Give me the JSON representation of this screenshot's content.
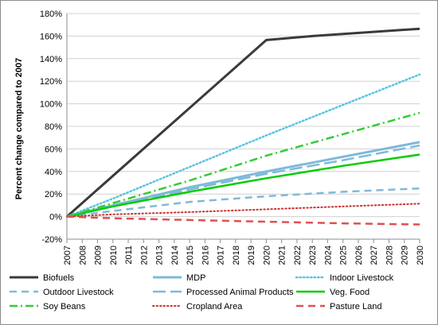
{
  "chart_data": {
    "type": "line",
    "title": "",
    "xlabel": "",
    "ylabel": "Percent change compared to 2007",
    "x": [
      2007,
      2008,
      2009,
      2010,
      2011,
      2012,
      2013,
      2014,
      2015,
      2016,
      2017,
      2018,
      2019,
      2020,
      2021,
      2022,
      2023,
      2024,
      2025,
      2026,
      2027,
      2028,
      2029,
      2030
    ],
    "x_tick_labels": [
      "2007",
      "2008",
      "2009",
      "2010",
      "2011",
      "2012",
      "2013",
      "2014",
      "2015",
      "2016",
      "2017",
      "2018",
      "2019",
      "2020",
      "2021",
      "2022",
      "2023",
      "2024",
      "2025",
      "2026",
      "2027",
      "2028",
      "2029",
      "2030"
    ],
    "ylim": [
      -20,
      180
    ],
    "y_ticks": [
      -20,
      0,
      20,
      40,
      60,
      80,
      100,
      120,
      140,
      160,
      180
    ],
    "y_tick_labels": [
      "-20%",
      "0%",
      "20%",
      "40%",
      "60%",
      "80%",
      "100%",
      "120%",
      "140%",
      "160%",
      "180%"
    ],
    "grid": "horizontal",
    "legend_position": "bottom",
    "series": [
      {
        "name": "Biofuels",
        "color": "#3a3a3a",
        "dash": "solid",
        "width": 3,
        "points": [
          [
            2007,
            0
          ],
          [
            2020,
            156.5
          ],
          [
            2023,
            160
          ],
          [
            2030,
            166.5
          ]
        ]
      },
      {
        "name": "MDP",
        "color": "#7fb9d9",
        "dash": "solid",
        "width": 3,
        "points": [
          [
            2007,
            0
          ],
          [
            2010,
            10
          ],
          [
            2015,
            26
          ],
          [
            2020,
            40
          ],
          [
            2025,
            53
          ],
          [
            2030,
            66
          ]
        ]
      },
      {
        "name": "Indoor Livestock",
        "color": "#5cc2e3",
        "dash": "dot",
        "width": 2.5,
        "points": [
          [
            2007,
            0
          ],
          [
            2010,
            16
          ],
          [
            2015,
            44
          ],
          [
            2020,
            72
          ],
          [
            2025,
            99
          ],
          [
            2030,
            126
          ]
        ]
      },
      {
        "name": "Outdoor Livestock",
        "color": "#7fb9d9",
        "dash": "dash",
        "width": 2.5,
        "points": [
          [
            2007,
            0
          ],
          [
            2010,
            5
          ],
          [
            2015,
            13
          ],
          [
            2020,
            18
          ],
          [
            2025,
            22
          ],
          [
            2030,
            25
          ]
        ]
      },
      {
        "name": "Processed Animal Products",
        "color": "#7fb9d9",
        "dash": "longdash",
        "width": 2.5,
        "points": [
          [
            2007,
            0
          ],
          [
            2010,
            9
          ],
          [
            2015,
            24
          ],
          [
            2020,
            38
          ],
          [
            2025,
            50
          ],
          [
            2030,
            63
          ]
        ]
      },
      {
        "name": "Veg. Food",
        "color": "#00cc00",
        "dash": "solid",
        "width": 2.5,
        "points": [
          [
            2007,
            0
          ],
          [
            2010,
            9
          ],
          [
            2015,
            22
          ],
          [
            2020,
            34
          ],
          [
            2025,
            45
          ],
          [
            2030,
            55
          ]
        ]
      },
      {
        "name": "Soy Beans",
        "color": "#33cc33",
        "dash": "dashdot",
        "width": 2.5,
        "points": [
          [
            2007,
            0
          ],
          [
            2010,
            12
          ],
          [
            2015,
            32
          ],
          [
            2020,
            54
          ],
          [
            2025,
            73
          ],
          [
            2030,
            92
          ]
        ]
      },
      {
        "name": "Cropland Area",
        "color": "#cc3333",
        "dash": "dot",
        "width": 2,
        "points": [
          [
            2007,
            0
          ],
          [
            2010,
            2
          ],
          [
            2015,
            4
          ],
          [
            2020,
            6.5
          ],
          [
            2025,
            9
          ],
          [
            2030,
            11.5
          ]
        ]
      },
      {
        "name": "Pasture Land",
        "color": "#e05050",
        "dash": "dash",
        "width": 2.5,
        "points": [
          [
            2007,
            0
          ],
          [
            2010,
            -1.5
          ],
          [
            2015,
            -3
          ],
          [
            2020,
            -4.5
          ],
          [
            2025,
            -6
          ],
          [
            2030,
            -7
          ]
        ]
      }
    ]
  }
}
